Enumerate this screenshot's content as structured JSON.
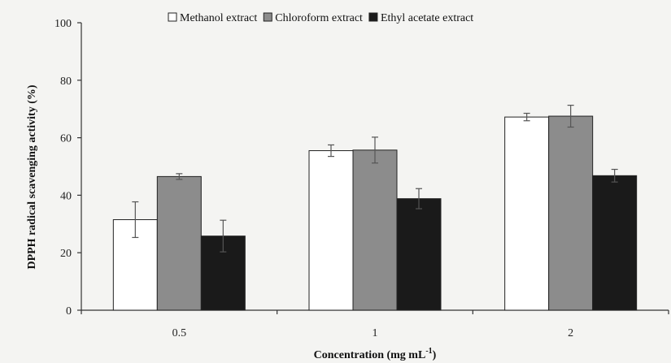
{
  "chart_data": {
    "type": "bar",
    "title": "",
    "xlabel": "Concentration (mg mL",
    "xlabel_superscript": "-1",
    "xlabel_suffix": ")",
    "ylabel": "DPPH radical scavenging activity  (%)",
    "ylim": [
      0,
      100
    ],
    "yticks": [
      0,
      20,
      40,
      60,
      80,
      100
    ],
    "categories": [
      "0.5",
      "1",
      "2"
    ],
    "legend_position": "top",
    "grid": false,
    "series": [
      {
        "name": "Methanol extract",
        "color": "#ffffff",
        "values": [
          31.5,
          55.5,
          67.2
        ],
        "errors": [
          6.2,
          2.0,
          1.3
        ]
      },
      {
        "name": "Chloroform extract",
        "color": "#8c8c8c",
        "values": [
          46.5,
          55.7,
          67.5
        ],
        "errors": [
          1.0,
          4.5,
          3.8
        ]
      },
      {
        "name": "Ethyl acetate extract",
        "color": "#1a1a1a",
        "values": [
          25.8,
          38.8,
          46.8
        ],
        "errors": [
          5.5,
          3.5,
          2.2
        ]
      }
    ]
  }
}
